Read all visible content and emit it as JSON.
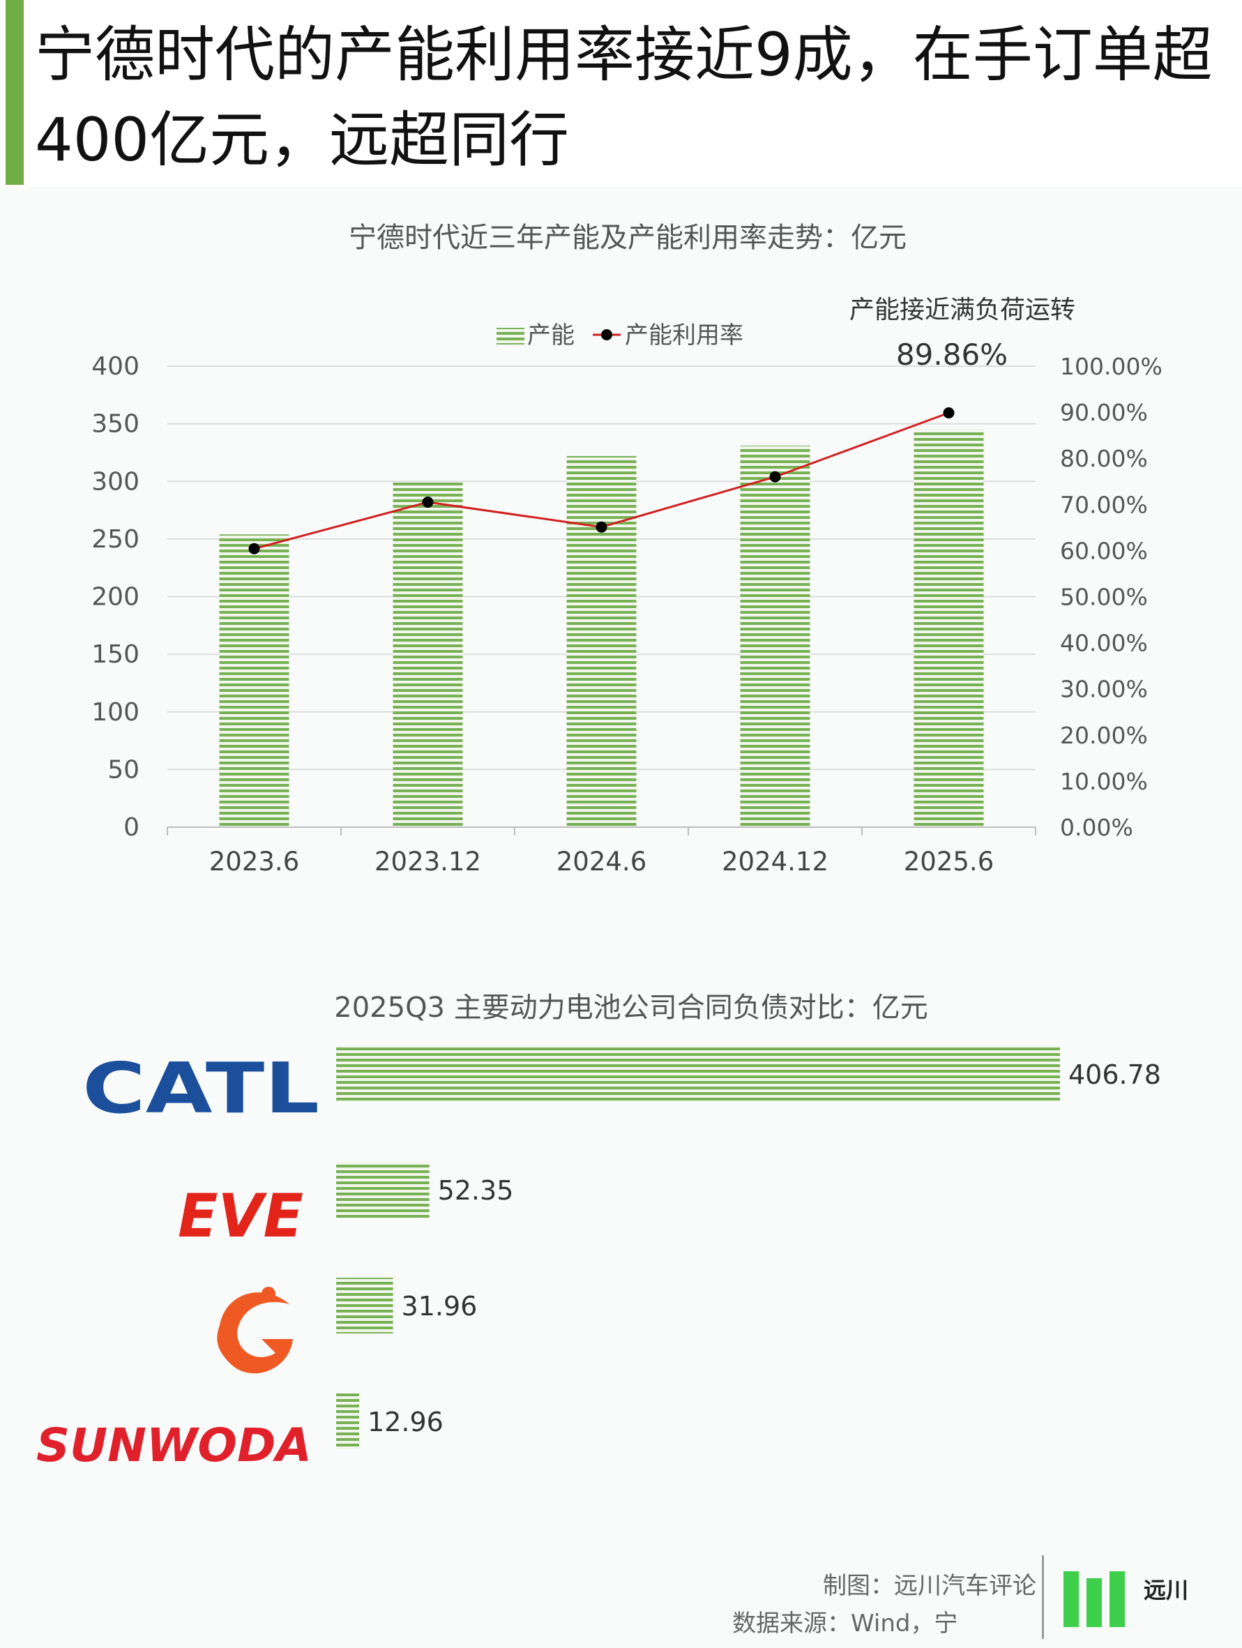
{
  "headline": "宁德时代的产能利用率接近9成，在手订单超400亿元，远超同行",
  "colors": {
    "accent": "#6fae45",
    "bar_green": "#77b154",
    "line_red": "#d21f1f",
    "point_black": "#000000",
    "catl_blue": "#1b4f9c",
    "eve_red": "#e3241b",
    "gotion_orange": "#ef5a24",
    "sunwoda_red": "#e0202a"
  },
  "chart_data": [
    {
      "type": "bar",
      "title": "宁德时代近三年产能及产能利用率走势：亿元",
      "categories": [
        "2023.6",
        "2023.12",
        "2024.6",
        "2024.12",
        "2025.6"
      ],
      "series": [
        {
          "name": "产能",
          "axis": "left",
          "kind": "bar",
          "values": [
            254,
            299,
            322,
            331,
            345
          ]
        },
        {
          "name": "产能利用率",
          "axis": "right",
          "kind": "line",
          "values": [
            60.4,
            70.5,
            65.1,
            76.0,
            89.86
          ]
        }
      ],
      "y_left": {
        "min": 0,
        "max": 400,
        "ticks": [
          "0",
          "50",
          "100",
          "150",
          "200",
          "250",
          "300",
          "350",
          "400"
        ]
      },
      "y_right": {
        "min": 0,
        "max": 100,
        "ticks": [
          "0.00%",
          "10.00%",
          "20.00%",
          "30.00%",
          "40.00%",
          "50.00%",
          "60.00%",
          "70.00%",
          "80.00%",
          "90.00%",
          "100.00%"
        ]
      },
      "grid": true,
      "legend_position": "top",
      "annotation": {
        "text": "产能接近满负荷运转",
        "value_label": "89.86%"
      }
    },
    {
      "type": "bar",
      "orientation": "horizontal",
      "title": "2025Q3 主要动力电池公司合同负债对比：亿元",
      "categories": [
        "CATL",
        "EVE",
        "",
        "SUNWODA"
      ],
      "values": [
        406.78,
        52.35,
        31.96,
        12.96
      ],
      "labels": [
        "406.78",
        "52.35",
        "31.96",
        "12.96"
      ],
      "xlim": [
        0,
        406.78
      ]
    }
  ],
  "logos": {
    "catl": "CATL",
    "eve": "EVE",
    "gotion_icon": "gotion-logo-icon",
    "sunwoda": "SUNWODA"
  },
  "footer": {
    "credit": "制图：远川汽车评论",
    "source": "数据来源：Wind，宁",
    "brand": "远川"
  }
}
